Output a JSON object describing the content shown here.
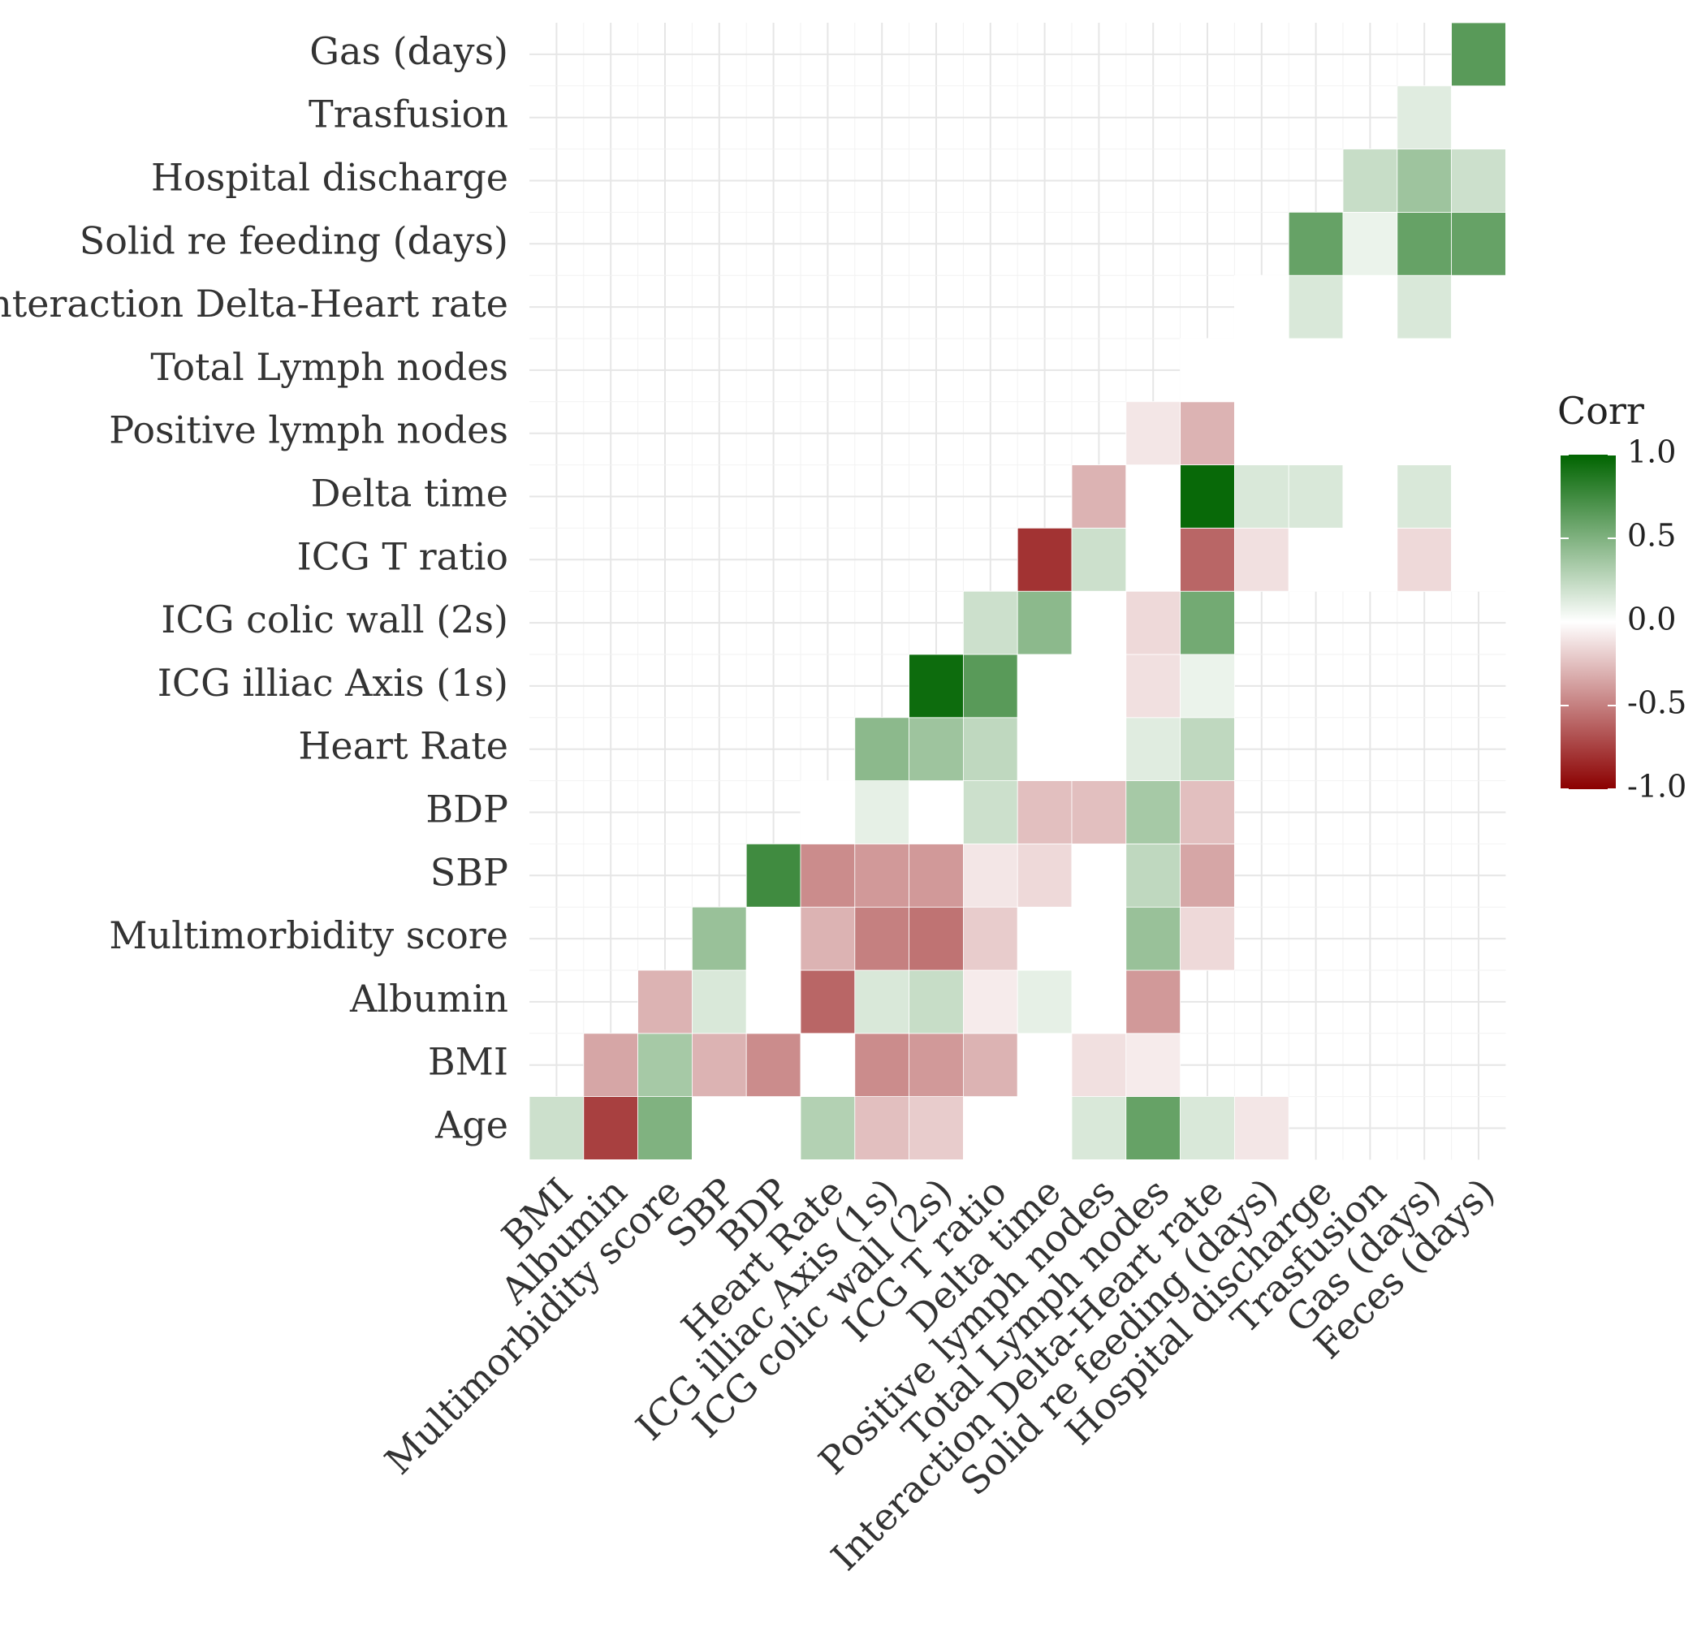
{
  "chart_data": {
    "type": "heatmap",
    "title": "",
    "x_labels": [
      "BMI",
      "Albumin",
      "Multimorbidity score",
      "SBP",
      "BDP",
      "Heart Rate",
      "ICG illiac Axis (1s)",
      "ICG colic wall (2s)",
      "ICG T ratio",
      "Delta time",
      "Positive lymph nodes",
      "Total Lymph nodes",
      "Interaction Delta-Heart rate",
      "Solid re feeding (days)",
      "Hospital discharge",
      "Trasfusion",
      "Gas (days)",
      "Feces (days)"
    ],
    "y_labels": [
      "Age",
      "BMI",
      "Albumin",
      "Multimorbidity score",
      "SBP",
      "BDP",
      "Heart Rate",
      "ICG illiac Axis (1s)",
      "ICG colic wall (2s)",
      "ICG T ratio",
      "Delta time",
      "Positive lymph nodes",
      "Total Lymph nodes",
      "Interaction Delta-Heart rate",
      "Solid re feeding (days)",
      "Hospital discharge",
      "Trasfusion",
      "Gas (days)"
    ],
    "values": [
      [
        0.2,
        -0.75,
        0.5,
        0.0,
        0.0,
        0.3,
        -0.25,
        -0.2,
        0.0,
        0.0,
        0.15,
        0.6,
        0.15,
        -0.1,
        null,
        null,
        null,
        null
      ],
      [
        null,
        -0.35,
        0.35,
        -0.3,
        -0.45,
        0.0,
        -0.45,
        -0.4,
        -0.3,
        0.0,
        -0.12,
        -0.08,
        null,
        null,
        null,
        null,
        null,
        null
      ],
      [
        null,
        null,
        -0.3,
        0.15,
        0.0,
        -0.6,
        0.15,
        0.22,
        -0.08,
        0.1,
        0.0,
        -0.4,
        null,
        null,
        null,
        null,
        null,
        null
      ],
      [
        null,
        null,
        null,
        0.4,
        0.0,
        -0.3,
        -0.5,
        -0.55,
        -0.2,
        0.0,
        0.0,
        0.4,
        -0.15,
        null,
        null,
        null,
        null,
        null
      ],
      [
        null,
        null,
        null,
        null,
        0.75,
        -0.45,
        -0.4,
        -0.4,
        -0.1,
        -0.15,
        0.0,
        0.25,
        -0.35,
        null,
        null,
        null,
        null,
        null
      ],
      [
        null,
        null,
        null,
        null,
        null,
        0.0,
        0.1,
        0.0,
        0.2,
        -0.25,
        -0.25,
        0.35,
        -0.25,
        null,
        null,
        null,
        null,
        null
      ],
      [
        null,
        null,
        null,
        null,
        null,
        null,
        0.45,
        0.38,
        0.25,
        0.0,
        0.0,
        0.12,
        0.25,
        null,
        null,
        null,
        null,
        null
      ],
      [
        null,
        null,
        null,
        null,
        null,
        null,
        null,
        0.95,
        0.65,
        0.0,
        0.0,
        -0.12,
        0.08,
        null,
        null,
        null,
        null,
        null
      ],
      [
        null,
        null,
        null,
        null,
        null,
        null,
        null,
        null,
        0.2,
        0.45,
        0.0,
        -0.15,
        0.55,
        null,
        null,
        null,
        null,
        null
      ],
      [
        null,
        null,
        null,
        null,
        null,
        null,
        null,
        null,
        null,
        -0.8,
        0.2,
        0.0,
        -0.6,
        -0.12,
        0.0,
        0.0,
        -0.15,
        0.0
      ],
      [
        null,
        null,
        null,
        null,
        null,
        null,
        null,
        null,
        null,
        null,
        -0.3,
        0.0,
        0.97,
        0.15,
        0.15,
        0.0,
        0.15,
        0.0
      ],
      [
        null,
        null,
        null,
        null,
        null,
        null,
        null,
        null,
        null,
        null,
        null,
        -0.1,
        -0.3,
        0.0,
        0.0,
        0.0,
        0.0,
        0.0
      ],
      [
        null,
        null,
        null,
        null,
        null,
        null,
        null,
        null,
        null,
        null,
        null,
        null,
        0.0,
        0.0,
        0.0,
        0.0,
        0.0,
        0.0
      ],
      [
        null,
        null,
        null,
        null,
        null,
        null,
        null,
        null,
        null,
        null,
        null,
        null,
        null,
        0.0,
        0.15,
        0.0,
        0.15,
        0.0
      ],
      [
        null,
        null,
        null,
        null,
        null,
        null,
        null,
        null,
        null,
        null,
        null,
        null,
        null,
        null,
        0.6,
        0.08,
        0.6,
        0.6
      ],
      [
        null,
        null,
        null,
        null,
        null,
        null,
        null,
        null,
        null,
        null,
        null,
        null,
        null,
        null,
        null,
        0.22,
        0.38,
        0.2
      ],
      [
        null,
        null,
        null,
        null,
        null,
        null,
        null,
        null,
        null,
        null,
        null,
        null,
        null,
        null,
        null,
        null,
        0.12,
        0.0
      ],
      [
        null,
        null,
        null,
        null,
        null,
        null,
        null,
        null,
        null,
        null,
        null,
        null,
        null,
        null,
        null,
        null,
        null,
        0.65
      ]
    ],
    "color_scale": {
      "low": "#8b0000",
      "mid": "#ffffff",
      "high": "#006400",
      "range": [
        -1.0,
        1.0
      ]
    },
    "legend": {
      "title": "Corr",
      "ticks": [
        "1.0",
        "0.5",
        "0.0",
        "-0.5",
        "-1.0"
      ],
      "tick_values": [
        1.0,
        0.5,
        0.0,
        -0.5,
        -1.0
      ],
      "position": "right"
    },
    "grid": true,
    "xlabel": "",
    "ylabel": ""
  }
}
